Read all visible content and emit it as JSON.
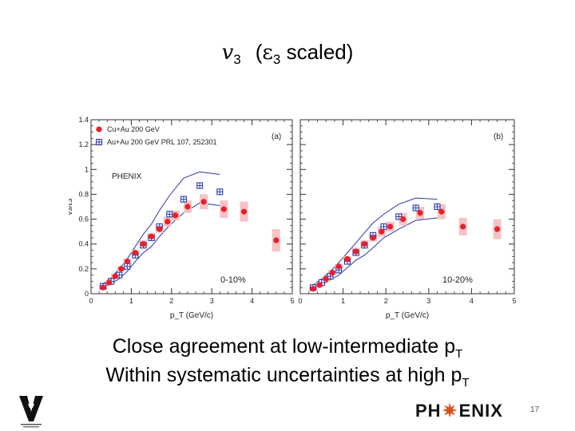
{
  "slide": {
    "title_v": "v",
    "title_v_sub": "3",
    "title_paren_open": "(",
    "title_eps": "ε",
    "title_eps_sub": "3",
    "title_rest": " scaled)",
    "caption_line1": "Close agreement at low-intermediate p",
    "caption_line1_sub": "T",
    "caption_line2": "Within systematic uncertainties at high p",
    "caption_line2_sub": "T",
    "logo_text": "PH ENIX",
    "logo_left": "PH",
    "logo_right": "ENIX",
    "slide_number": "17"
  },
  "colors": {
    "cu_au": "#e8202a",
    "cu_au_band": "#f6c2c4",
    "au_au": "#2b3aa8",
    "axis": "#333333"
  },
  "chart_data": [
    {
      "type": "scatter",
      "panel_label": "(a)",
      "centrality": "0-10%",
      "experiment_label": "PHENIX",
      "xlabel": "p_T (GeV/c)",
      "ylabel": "v3/ε3",
      "xlim": [
        0,
        5
      ],
      "ylim": [
        0,
        1.4
      ],
      "x_ticks": [
        "0",
        "1",
        "2",
        "3",
        "4",
        "5"
      ],
      "y_ticks": [
        "0",
        "0.2",
        "0.4",
        "0.6",
        "0.8",
        "1",
        "1.2",
        "1.4"
      ],
      "legend": [
        "Cu+Au 200 GeV",
        "Au+Au 200 GeV PRL 107, 252301"
      ],
      "legend_position": "top-left",
      "series": [
        {
          "name": "Cu+Au 200 GeV",
          "marker": "filled-circle",
          "x": [
            0.3,
            0.45,
            0.6,
            0.75,
            0.9,
            1.1,
            1.3,
            1.5,
            1.7,
            1.9,
            2.1,
            2.4,
            2.8,
            3.3,
            3.8,
            4.6
          ],
          "y": [
            0.05,
            0.09,
            0.14,
            0.2,
            0.26,
            0.33,
            0.4,
            0.46,
            0.52,
            0.58,
            0.63,
            0.7,
            0.74,
            0.68,
            0.66,
            0.43
          ],
          "sys": [
            0.02,
            0.02,
            0.02,
            0.02,
            0.02,
            0.02,
            0.03,
            0.03,
            0.03,
            0.04,
            0.04,
            0.05,
            0.06,
            0.07,
            0.08,
            0.09
          ]
        },
        {
          "name": "Au+Au 200 GeV PRL 107, 252301",
          "marker": "open-cross",
          "x": [
            0.3,
            0.5,
            0.7,
            0.9,
            1.1,
            1.3,
            1.5,
            1.7,
            1.95,
            2.3,
            2.7,
            3.2
          ],
          "y": [
            0.06,
            0.1,
            0.15,
            0.22,
            0.31,
            0.39,
            0.45,
            0.54,
            0.64,
            0.76,
            0.87,
            0.82
          ],
          "band_upper": [
            0.08,
            0.13,
            0.2,
            0.28,
            0.38,
            0.48,
            0.56,
            0.67,
            0.79,
            0.93,
            0.98,
            0.96
          ],
          "band_lower": [
            0.05,
            0.08,
            0.12,
            0.18,
            0.26,
            0.33,
            0.38,
            0.46,
            0.55,
            0.65,
            0.73,
            0.71
          ]
        }
      ]
    },
    {
      "type": "scatter",
      "panel_label": "(b)",
      "centrality": "10-20%",
      "xlabel": "p_T (GeV/c)",
      "xlim": [
        0,
        5
      ],
      "ylim": [
        0,
        1.4
      ],
      "x_ticks": [
        "0",
        "1",
        "2",
        "3",
        "4",
        "5"
      ],
      "series": [
        {
          "name": "Cu+Au 200 GeV",
          "marker": "filled-circle",
          "x": [
            0.3,
            0.45,
            0.6,
            0.75,
            0.9,
            1.1,
            1.3,
            1.5,
            1.7,
            1.9,
            2.1,
            2.4,
            2.8,
            3.3,
            3.8,
            4.6
          ],
          "y": [
            0.04,
            0.07,
            0.12,
            0.17,
            0.22,
            0.28,
            0.34,
            0.4,
            0.45,
            0.5,
            0.54,
            0.6,
            0.65,
            0.66,
            0.54,
            0.52
          ],
          "sys": [
            0.02,
            0.02,
            0.02,
            0.02,
            0.02,
            0.02,
            0.03,
            0.03,
            0.03,
            0.04,
            0.04,
            0.05,
            0.05,
            0.06,
            0.07,
            0.08
          ]
        },
        {
          "name": "Au+Au 200 GeV PRL 107, 252301",
          "marker": "open-cross",
          "x": [
            0.3,
            0.5,
            0.7,
            0.9,
            1.1,
            1.3,
            1.5,
            1.7,
            1.95,
            2.3,
            2.7,
            3.2
          ],
          "y": [
            0.05,
            0.09,
            0.14,
            0.19,
            0.26,
            0.33,
            0.39,
            0.47,
            0.54,
            0.62,
            0.69,
            0.7
          ],
          "band_upper": [
            0.07,
            0.12,
            0.18,
            0.25,
            0.33,
            0.41,
            0.49,
            0.57,
            0.64,
            0.72,
            0.77,
            0.76
          ],
          "band_lower": [
            0.04,
            0.07,
            0.11,
            0.15,
            0.21,
            0.27,
            0.31,
            0.37,
            0.45,
            0.52,
            0.59,
            0.61
          ]
        }
      ]
    }
  ]
}
